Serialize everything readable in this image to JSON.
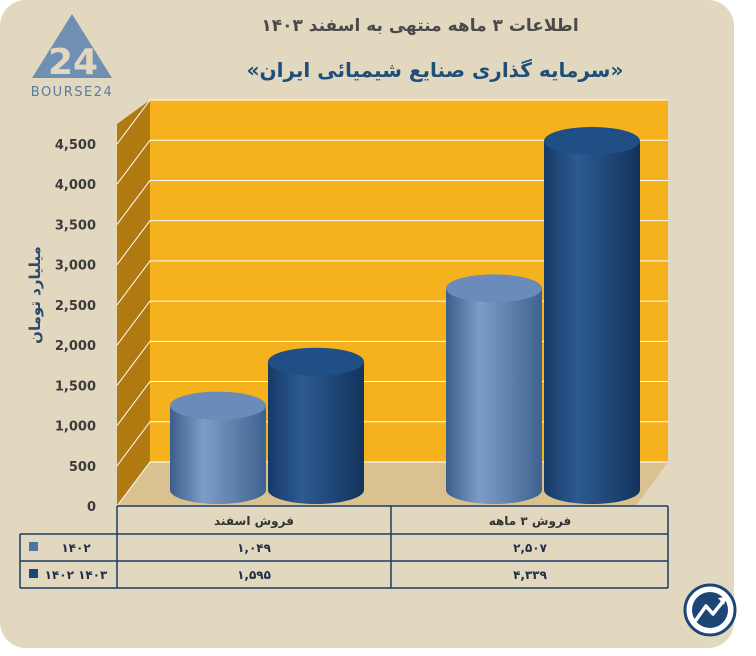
{
  "brand": {
    "logo_numerals": "24",
    "logo_text": "BOURSE24"
  },
  "colors": {
    "background": "#e2d8bf",
    "plot_back": "#f6b21c",
    "plot_side": "#b07a10",
    "series_1402": "#4f74a6",
    "series_1403": "#1d4677"
  },
  "chart_data": {
    "type": "bar",
    "title": "اطلاعات ۳ ماهه منتهی به اسفند ۱۴۰۳",
    "subtitle": "«سرمایه گذاری صنایع شیمیائی ایران»",
    "ylabel": "میلیارد تومان",
    "xlabel": "",
    "ylim": [
      0,
      4500
    ],
    "yticks": [
      0,
      500,
      1000,
      1500,
      2000,
      2500,
      3000,
      3500,
      4000,
      4500
    ],
    "ytick_labels": [
      "0",
      "500",
      "1,000",
      "1,500",
      "2,000",
      "2,500",
      "3,000",
      "3,500",
      "4,000",
      "4,500"
    ],
    "grid": true,
    "categories": [
      "فروش اسفند",
      "فروش ۳ ماهه"
    ],
    "series": [
      {
        "name": "۱۴۰۲",
        "values": [
          1049,
          2507
        ],
        "value_labels": [
          "۱,۰۴۹",
          "۲,۵۰۷"
        ],
        "color": "#4f74a6"
      },
      {
        "name": "۱۴۰۲ ۱۴۰۳",
        "values": [
          1595,
          4339
        ],
        "value_labels": [
          "۱,۵۹۵",
          "۴,۳۳۹"
        ],
        "color": "#1d4677"
      }
    ]
  }
}
